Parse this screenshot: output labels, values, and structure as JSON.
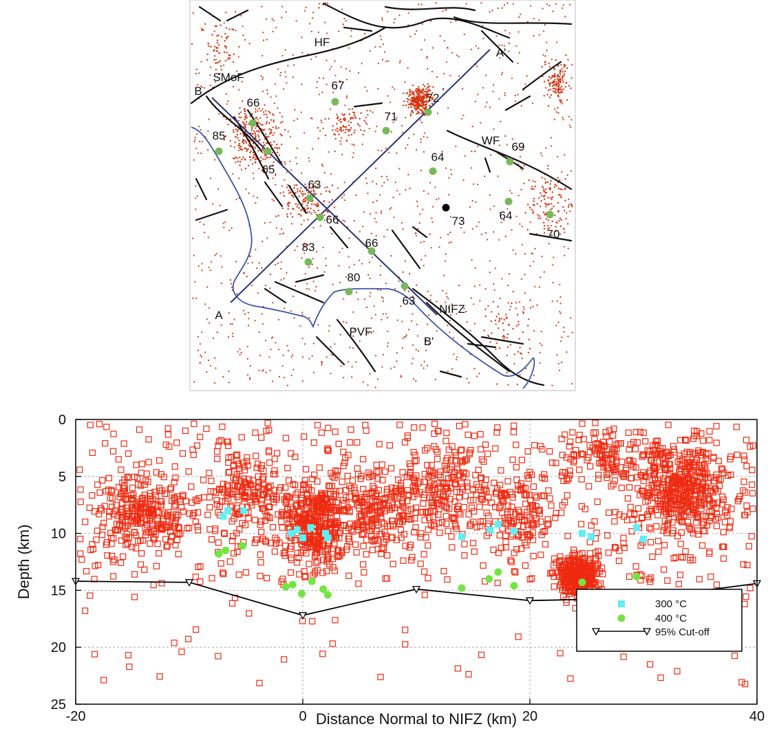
{
  "map": {
    "labels": [
      {
        "text": "HF"
      },
      {
        "text": "SMoF"
      },
      {
        "text": "B"
      },
      {
        "text": "A'"
      },
      {
        "text": "WF"
      },
      {
        "text": "A"
      },
      {
        "text": "B'"
      },
      {
        "text": "PVF"
      },
      {
        "text": "NIFZ"
      }
    ],
    "sites": [
      {
        "label": "85",
        "color": "#78b85a"
      },
      {
        "label": "66",
        "color": "#78b85a"
      },
      {
        "label": "65",
        "color": "#78b85a"
      },
      {
        "label": "63",
        "color": "#78b85a"
      },
      {
        "label": "66",
        "color": "#78b85a"
      },
      {
        "label": "67",
        "color": "#78b85a"
      },
      {
        "label": "71",
        "color": "#78b85a"
      },
      {
        "label": "72",
        "color": "#78b85a"
      },
      {
        "label": "64",
        "color": "#78b85a"
      },
      {
        "label": "69",
        "color": "#78b85a"
      },
      {
        "label": "64",
        "color": "#78b85a"
      },
      {
        "label": "73",
        "color": "#000000"
      },
      {
        "label": "70",
        "color": "#78b85a"
      },
      {
        "label": "66",
        "color": "#78b85a"
      },
      {
        "label": "83",
        "color": "#78b85a"
      },
      {
        "label": "80",
        "color": "#78b85a"
      },
      {
        "label": "63",
        "color": "#78b85a"
      }
    ]
  },
  "chart_data": {
    "type": "scatter",
    "xlabel": "Distance Normal to NIFZ (km)",
    "ylabel": "Depth (km)",
    "xlim": [
      -20,
      40
    ],
    "ylim": [
      25,
      0
    ],
    "y_inverted": true,
    "xticks": [
      "-20",
      "0",
      "20",
      "40"
    ],
    "yticks": [
      "0",
      "5",
      "10",
      "15",
      "20",
      "25"
    ],
    "grid": true,
    "legend_position": "bottom-right",
    "colors": {
      "earthquakes": "#ee2a10",
      "t300": "#5ef0f5",
      "t400": "#72e640",
      "cutoff": "#000000"
    },
    "series": [
      {
        "name": "300 °C",
        "legend_label": "300 °C",
        "marker": "square",
        "points": [
          {
            "x": -7,
            "y": 8.5
          },
          {
            "x": -6.6,
            "y": 8.0
          },
          {
            "x": -5.2,
            "y": 8.0
          },
          {
            "x": -1,
            "y": 10.0
          },
          {
            "x": -0.5,
            "y": 9.7
          },
          {
            "x": 0,
            "y": 10.4
          },
          {
            "x": 0.7,
            "y": 9.5
          },
          {
            "x": 2,
            "y": 10.0
          },
          {
            "x": 2.2,
            "y": 10.4
          },
          {
            "x": 14,
            "y": 10.3
          },
          {
            "x": 16.5,
            "y": 9.7
          },
          {
            "x": 17.2,
            "y": 9.2
          },
          {
            "x": 18.6,
            "y": 9.8
          },
          {
            "x": 24.6,
            "y": 10.0
          },
          {
            "x": 25.4,
            "y": 10.3
          },
          {
            "x": 29.4,
            "y": 9.5
          },
          {
            "x": 30,
            "y": 10.5
          }
        ]
      },
      {
        "name": "400 °C",
        "legend_label": "400 °C",
        "marker": "circle",
        "points": [
          {
            "x": -7.4,
            "y": 11.8
          },
          {
            "x": -6.8,
            "y": 11.5
          },
          {
            "x": -5.3,
            "y": 11.1
          },
          {
            "x": -1.5,
            "y": 14.7
          },
          {
            "x": -0.9,
            "y": 14.5
          },
          {
            "x": -0.1,
            "y": 15.3
          },
          {
            "x": 0.8,
            "y": 14.2
          },
          {
            "x": 1.8,
            "y": 14.9
          },
          {
            "x": 2.2,
            "y": 15.4
          },
          {
            "x": 14,
            "y": 14.8
          },
          {
            "x": 16.4,
            "y": 14.0
          },
          {
            "x": 17.2,
            "y": 13.4
          },
          {
            "x": 18.6,
            "y": 14.6
          },
          {
            "x": 24.6,
            "y": 14.3
          },
          {
            "x": 25.3,
            "y": 15.3
          },
          {
            "x": 29.4,
            "y": 13.8
          },
          {
            "x": 30,
            "y": 15.2
          }
        ]
      },
      {
        "name": "95% Cut-off",
        "legend_label": "95% Cut-off",
        "marker": "triangle-down",
        "points": [
          {
            "x": -20,
            "y": 14.2
          },
          {
            "x": -10,
            "y": 14.3
          },
          {
            "x": 0,
            "y": 17.2
          },
          {
            "x": 10,
            "y": 14.9
          },
          {
            "x": 20,
            "y": 15.9
          },
          {
            "x": 30,
            "y": 15.7
          },
          {
            "x": 40,
            "y": 14.4
          }
        ]
      }
    ]
  }
}
